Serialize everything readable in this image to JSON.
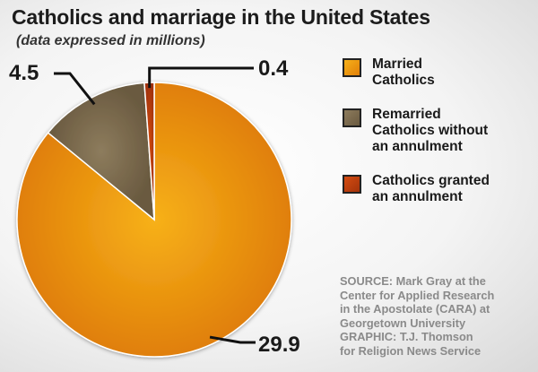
{
  "title": "Catholics and marriage in the United States",
  "subtitle": "(data expressed in millions)",
  "chart_data": {
    "type": "pie",
    "title": "Catholics and marriage in the United States",
    "subtitle": "(data expressed in millions)",
    "slices": [
      {
        "label": "Married Catholics",
        "value": 29.9,
        "value_label": "29.9",
        "color": "#f29a12"
      },
      {
        "label": "Remarried Catholics without an annulment",
        "value": 4.5,
        "value_label": "4.5",
        "color": "#7d6c4f"
      },
      {
        "label": "Catholics granted an annulment",
        "value": 0.4,
        "value_label": "0.4",
        "color": "#c8420e"
      }
    ],
    "legend_position": "right"
  },
  "legend": [
    {
      "label": "Married\nCatholics",
      "color": "#f29a12"
    },
    {
      "label": "Remarried\nCatholics without\nan annulment",
      "color": "#7d6c4f"
    },
    {
      "label": "Catholics granted\nan annulment",
      "color": "#c8420e"
    }
  ],
  "source": "SOURCE: Mark Gray at the\nCenter for Applied Research\nin the Apostolate (CARA) at\nGeorgetown University\nGRAPHIC: T.J. Thomson\nfor Religion News Service"
}
